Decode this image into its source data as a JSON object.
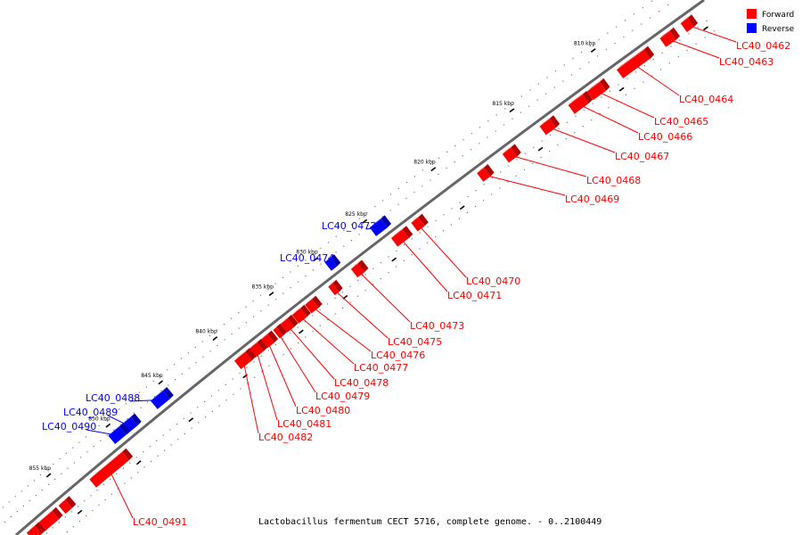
{
  "legend": [
    {
      "label": "Forward",
      "color": "#ff0000"
    },
    {
      "label": "Reverse",
      "color": "#0000ff"
    }
  ],
  "caption": "Lactobacillus fermentum CECT 5716, complete genome. - 0..2100449",
  "colors": {
    "forward": "#ff0000",
    "forward_side": "#b00000",
    "forward_top": "#ff6a6a",
    "reverse": "#0000ff",
    "reverse_side": "#0000a8",
    "reverse_top": "#6a6aff",
    "backbone": "#666666"
  },
  "ticks": [
    "805 kbp",
    "810 kbp",
    "815 kbp",
    "820 kbp",
    "825 kbp",
    "830 kbp",
    "835 kbp",
    "840 kbp",
    "845 kbp",
    "850 kbp",
    "855 kbp"
  ],
  "genes": [
    {
      "name": "LC40_0462",
      "strand": "forward"
    },
    {
      "name": "LC40_0463",
      "strand": "forward"
    },
    {
      "name": "LC40_0464",
      "strand": "forward"
    },
    {
      "name": "LC40_0465",
      "strand": "forward"
    },
    {
      "name": "LC40_0466",
      "strand": "forward"
    },
    {
      "name": "LC40_0467",
      "strand": "forward"
    },
    {
      "name": "LC40_0468",
      "strand": "forward"
    },
    {
      "name": "LC40_0469",
      "strand": "forward"
    },
    {
      "name": "LC40_0470",
      "strand": "forward"
    },
    {
      "name": "LC40_0471",
      "strand": "forward"
    },
    {
      "name": "LC40_0472",
      "strand": "reverse"
    },
    {
      "name": "LC40_0473",
      "strand": "forward"
    },
    {
      "name": "LC40_0474",
      "strand": "reverse"
    },
    {
      "name": "LC40_0475",
      "strand": "forward"
    },
    {
      "name": "LC40_0476",
      "strand": "forward"
    },
    {
      "name": "LC40_0477",
      "strand": "forward"
    },
    {
      "name": "LC40_0478",
      "strand": "forward"
    },
    {
      "name": "LC40_0479",
      "strand": "forward"
    },
    {
      "name": "LC40_0480",
      "strand": "forward"
    },
    {
      "name": "LC40_0481",
      "strand": "forward"
    },
    {
      "name": "LC40_0482",
      "strand": "forward"
    },
    {
      "name": "LC40_0488",
      "strand": "reverse"
    },
    {
      "name": "LC40_0489",
      "strand": "reverse"
    },
    {
      "name": "LC40_0490",
      "strand": "reverse"
    },
    {
      "name": "LC40_0491",
      "strand": "forward"
    }
  ]
}
